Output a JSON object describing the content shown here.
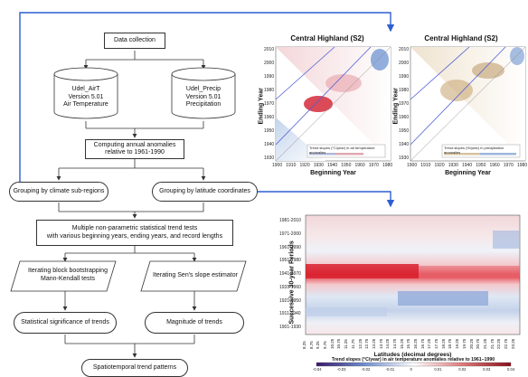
{
  "flowchart": {
    "data_collection": "Data collection",
    "air_db": [
      "Udel_AirT",
      "Version 5.01",
      "Air Temperature"
    ],
    "precip_db": [
      "Udel_Precip",
      "Version 5.01",
      "Precipitation"
    ],
    "anomalies": [
      "Computing annual anomalies",
      "relative to 1961-1990"
    ],
    "group_climate": "Grouping by climate sub-regions",
    "group_latitude": "Grouping by latitude coordinates",
    "trend_tests": [
      "Multiple non-parametric statistical trend tests",
      "with various beginning years, ending years, and record lengths"
    ],
    "bootstrap": [
      "Iterating block bootstrapping",
      "Mann-Kendall tests"
    ],
    "sens": "Iterating Sen's slope estimator",
    "significance": "Statistical significance of trends",
    "magnitude": "Magnitude of trends",
    "patterns": "Spatiotemporal trend patterns"
  },
  "triangle_left": {
    "title": "Central Highland (S2)",
    "xlabel": "Beginning Year",
    "ylabel": "Ending Year",
    "yticks": [
      "2010",
      "2000",
      "1990",
      "1980",
      "1970",
      "1960",
      "1950",
      "1940",
      "1930"
    ],
    "xticks": [
      "1900",
      "1910",
      "1920",
      "1930",
      "1940",
      "1950",
      "1960",
      "1970",
      "1980"
    ],
    "legend": [
      "Trend slopes (°C/year) in air temperature anomalies",
      "relative to 1961-1990"
    ],
    "legend_ticks": [
      "-0.04",
      "-0.02",
      "0",
      "0.02",
      "0.04"
    ]
  },
  "triangle_right": {
    "title": "Central Highland (S2)",
    "xlabel": "Beginning Year",
    "ylabel": "Ending Year",
    "yticks": [
      "2010",
      "2000",
      "1990",
      "1980",
      "1970",
      "1960",
      "1950",
      "1940",
      "1930"
    ],
    "xticks": [
      "1900",
      "1910",
      "1920",
      "1930",
      "1940",
      "1950",
      "1960",
      "1970",
      "1980"
    ],
    "legend": [
      "Trend slopes (%/year) in precipitation anomalies",
      "relative to 1961-1990"
    ],
    "legend_ticks": [
      "-0.8",
      "-0.4",
      "0",
      "0.4",
      "0.8"
    ]
  },
  "heatmap": {
    "ylabel": "Successive 30-year Periods",
    "xlabel": "Latitudes (decimal degrees)",
    "periods": [
      "1981-2010",
      "1971-2000",
      "1961-1990",
      "1951-1980",
      "1941-1970",
      "1931-1960",
      "1921-1950",
      "1911-1940",
      "1901-1930"
    ],
    "latitudes": [
      "8.25",
      "8.75",
      "9.25",
      "9.75",
      "10.25",
      "10.75",
      "11.25",
      "11.75",
      "12.25",
      "12.75",
      "13.25",
      "13.75",
      "14.25",
      "14.75",
      "15.25",
      "15.75",
      "16.25",
      "16.75",
      "17.25",
      "17.75",
      "18.25",
      "18.75",
      "19.25",
      "19.75",
      "20.25",
      "20.75",
      "21.25",
      "21.75",
      "22.25",
      "22.75",
      "23.25"
    ],
    "cbar_title": "Trend slopes (°C/year) in air temperature anomalies relative to 1961–1990",
    "cbar_ticks": [
      "-0.04",
      "-0.03",
      "-0.02",
      "-0.01",
      "0",
      "0.01",
      "0.02",
      "0.03",
      "0.04"
    ]
  },
  "colors": {
    "arrow": "#2f5fd0",
    "warm": "#c8102e",
    "cool": "#2b5fa8",
    "brown": "#8a6a3c"
  }
}
